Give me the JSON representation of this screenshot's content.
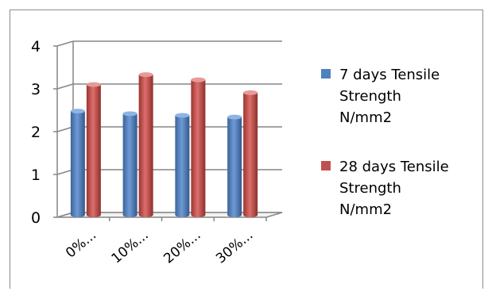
{
  "chart_data": {
    "type": "bar",
    "title": "",
    "xlabel": "",
    "ylabel": "",
    "ylim": [
      0,
      4
    ],
    "y_ticks": [
      0,
      1,
      2,
      3,
      4
    ],
    "grid": true,
    "legend_position": "right",
    "categories": [
      "0%...",
      "10%...",
      "20%...",
      "30%..."
    ],
    "series": [
      {
        "name": "7 days Tensile Strength N/mm2",
        "name_lines": [
          "7 days Tensile",
          "Strength",
          "N/mm2"
        ],
        "color": "#4f81bd",
        "values": [
          2.48,
          2.42,
          2.38,
          2.34
        ]
      },
      {
        "name": "28 days Tensile Strength N/mm2",
        "name_lines": [
          "28 days Tensile",
          "Strength",
          "N/mm2"
        ],
        "color": "#c0504d",
        "values": [
          3.1,
          3.33,
          3.21,
          2.91
        ]
      }
    ]
  }
}
